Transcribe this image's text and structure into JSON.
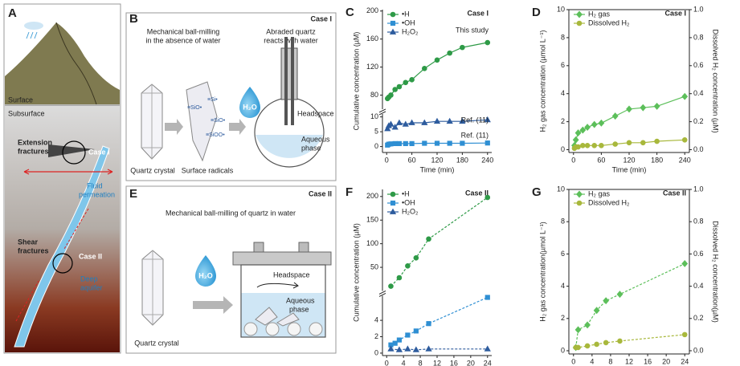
{
  "panel_A": {
    "letter": "A",
    "labels": [
      "Surface",
      "Subsurface",
      "Extension",
      "fractures",
      "Case I",
      "Fluid",
      "permeation",
      "Shear",
      "fractures",
      "Case II",
      "Deep",
      "aquifer"
    ]
  },
  "panel_B": {
    "letter": "B",
    "case": "Case I",
    "step1": [
      "Mechanical ball-milling",
      "in the absence of water"
    ],
    "step2": [
      "Abraded quartz",
      "reacts with water"
    ],
    "crystal": "Quartz crystal",
    "radicals": "Surface radicals",
    "radical_labels": [
      "≡SiO•",
      "≡Si•",
      "≡SiO•",
      "≡SiOO•"
    ],
    "water": "H₂O",
    "headspace": "Headspace",
    "aqueous": [
      "Aqueous",
      "phase"
    ]
  },
  "panel_E": {
    "letter": "E",
    "case": "Case II",
    "title": "Mechanical ball-milling of quartz in water",
    "crystal": "Quartz crystal",
    "water": "H₂O",
    "headspace": "Headspace",
    "aqueous": [
      "Aqueous",
      "phase"
    ]
  },
  "chart_data": [
    {
      "type": "line",
      "panel": "C",
      "case": "Case I",
      "xlabel": "Time (min)",
      "ylabel": "Cumulative concentration (µM)",
      "xlim": [
        -10,
        250
      ],
      "xticks": [
        0,
        60,
        120,
        180,
        240
      ],
      "y_segments": [
        {
          "ylim": [
            -2,
            11
          ],
          "yticks": [
            0,
            5,
            10
          ]
        },
        {
          "ylim": [
            60,
            202
          ],
          "yticks": [
            80,
            120,
            160,
            200
          ]
        }
      ],
      "line_style": "solid",
      "legend": "upper left",
      "annotations": [
        "This study",
        "Ref. (11)",
        "Ref. (11)"
      ],
      "series": [
        {
          "name": "•H",
          "color": "#2e9a47",
          "marker": "circle",
          "x": [
            2,
            5,
            10,
            20,
            30,
            45,
            60,
            90,
            120,
            150,
            180,
            240
          ],
          "values": [
            75,
            77,
            80,
            88,
            92,
            98,
            102,
            118,
            130,
            140,
            148,
            155
          ]
        },
        {
          "name": "•OH",
          "color": "#2f8fd3",
          "marker": "square",
          "x": [
            2,
            5,
            10,
            20,
            30,
            45,
            60,
            90,
            120,
            150,
            180,
            240
          ],
          "values": [
            0.5,
            0.8,
            0.9,
            1,
            1,
            1,
            1,
            1.1,
            1.1,
            1.1,
            1.1,
            1.2
          ]
        },
        {
          "name": "H₂O₂",
          "color": "#2e5c9e",
          "marker": "triangle",
          "x": [
            2,
            5,
            10,
            20,
            30,
            45,
            60,
            90,
            120,
            150,
            180,
            240
          ],
          "values": [
            6,
            7,
            7.5,
            6.5,
            8,
            7.5,
            8,
            8,
            8.5,
            8.5,
            8.5,
            9
          ]
        }
      ]
    },
    {
      "type": "line",
      "panel": "D",
      "case": "Case I",
      "xlabel": "Time (min)",
      "ylabel": "H₂ gas concentration  (µmol L⁻¹)",
      "y2label": "Dissolved H₂ concentration (µM)",
      "xlim": [
        -10,
        250
      ],
      "xticks": [
        0,
        60,
        120,
        180,
        240
      ],
      "ylim": [
        -0.2,
        10
      ],
      "yticks": [
        0,
        2,
        4,
        6,
        8,
        10
      ],
      "y2lim": [
        -0.02,
        1
      ],
      "y2ticks": [
        {
          "value": 0,
          "label": "0.0"
        },
        0.2,
        0.4,
        0.6,
        0.8,
        {
          "value": 1,
          "label": "1.0"
        }
      ],
      "line_style": "solid",
      "legend": "upper left",
      "series": [
        {
          "name": "H₂ gas",
          "color": "#5cbf5a",
          "marker": "diamond",
          "x": [
            2,
            5,
            10,
            20,
            30,
            45,
            60,
            90,
            120,
            150,
            180,
            240
          ],
          "values": [
            0.3,
            0.7,
            1.2,
            1.4,
            1.6,
            1.8,
            1.9,
            2.4,
            2.9,
            3.0,
            3.1,
            3.8
          ]
        },
        {
          "name": "Dissolved H₂",
          "color": "#a8b83c",
          "marker": "circle",
          "axis": "y2",
          "x": [
            2,
            5,
            10,
            20,
            30,
            45,
            60,
            90,
            120,
            150,
            180,
            240
          ],
          "values": [
            0.01,
            0.02,
            0.02,
            0.03,
            0.03,
            0.03,
            0.03,
            0.04,
            0.05,
            0.05,
            0.06,
            0.07
          ]
        }
      ]
    },
    {
      "type": "line",
      "panel": "F",
      "case": "Case II",
      "xlabel": "Time (h)",
      "ylabel": "Cumulative concentration (µM)",
      "xlim": [
        -1,
        25
      ],
      "xticks": [
        0,
        4,
        8,
        12,
        16,
        20,
        24
      ],
      "y_segments": [
        {
          "ylim": [
            -0.3,
            7
          ],
          "yticks": [
            0,
            2,
            4
          ]
        },
        {
          "ylim": [
            0,
            215
          ],
          "yticks": [
            50,
            100,
            150,
            200
          ]
        }
      ],
      "line_style": "dashed",
      "legend": "upper left",
      "series": [
        {
          "name": "•H",
          "color": "#2e9a47",
          "marker": "circle",
          "x": [
            1,
            3,
            5,
            7,
            10,
            24
          ],
          "values": [
            10,
            28,
            53,
            70,
            110,
            198
          ]
        },
        {
          "name": "•OH",
          "color": "#2f8fd3",
          "marker": "square",
          "x": [
            1,
            2,
            3,
            5,
            7,
            10,
            24
          ],
          "values": [
            1,
            1.2,
            1.6,
            2.2,
            2.7,
            3.6,
            6.8
          ]
        },
        {
          "name": "H₂O₂",
          "color": "#2e5c9e",
          "marker": "triangle",
          "x": [
            1,
            3,
            5,
            7,
            10,
            24
          ],
          "values": [
            0.5,
            0.4,
            0.5,
            0.4,
            0.5,
            0.5
          ]
        }
      ]
    },
    {
      "type": "line",
      "panel": "G",
      "case": "Case II",
      "xlabel": "Time (h)",
      "ylabel": "H₂ gas concentration(µmol L⁻¹)",
      "y2label": "Dissolved H₂ concentration(µM)",
      "xlim": [
        -1,
        25
      ],
      "xticks": [
        0,
        4,
        8,
        12,
        16,
        20,
        24
      ],
      "ylim": [
        -0.2,
        10
      ],
      "yticks": [
        0,
        2,
        4,
        6,
        8,
        10
      ],
      "y2lim": [
        -0.02,
        1
      ],
      "y2ticks": [
        {
          "value": 0,
          "label": "0.0"
        },
        0.2,
        0.4,
        0.6,
        0.8,
        {
          "value": 1,
          "label": "1.0"
        }
      ],
      "line_style": "dashed",
      "legend": "upper left",
      "series": [
        {
          "name": "H₂ gas",
          "color": "#5cbf5a",
          "marker": "diamond",
          "x": [
            0.5,
            1,
            3,
            5,
            7,
            10,
            24
          ],
          "values": [
            0.2,
            1.3,
            1.6,
            2.5,
            3.1,
            3.5,
            5.4
          ]
        },
        {
          "name": "Dissolved H₂",
          "color": "#a8b83c",
          "marker": "circle",
          "axis": "y2",
          "x": [
            0.5,
            1,
            3,
            5,
            7,
            10,
            24
          ],
          "values": [
            0.02,
            0.02,
            0.03,
            0.04,
            0.05,
            0.06,
            0.1
          ]
        }
      ]
    }
  ]
}
